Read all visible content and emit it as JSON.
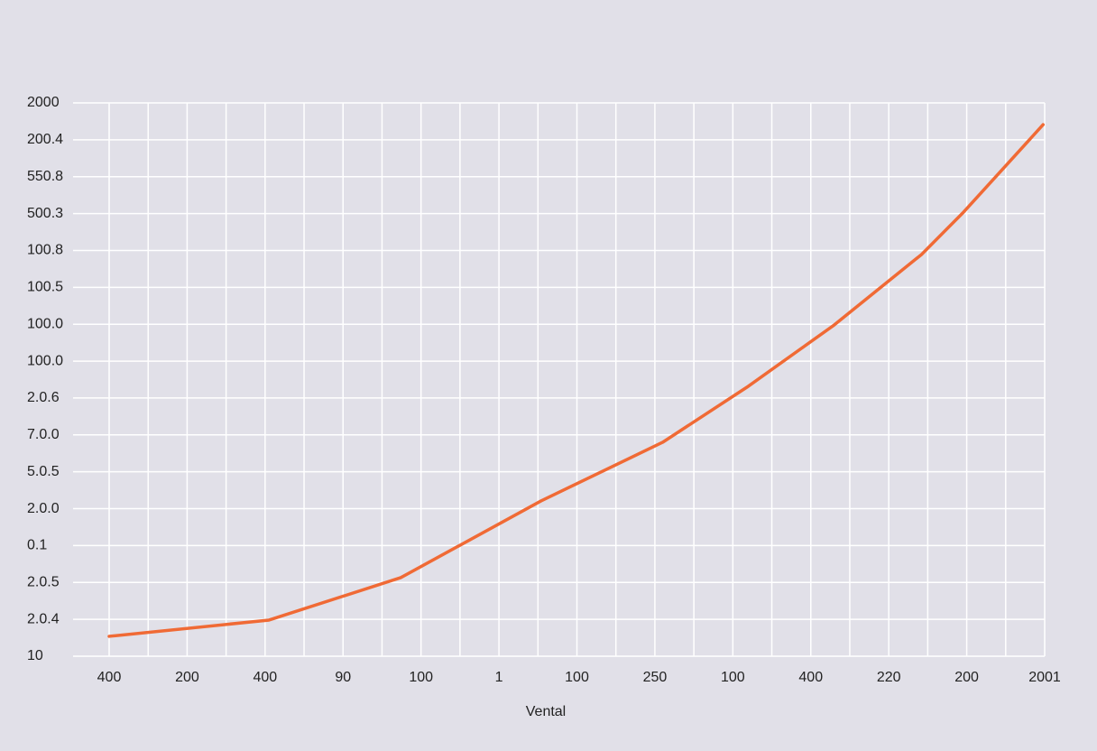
{
  "chart_data": {
    "type": "line",
    "x_label": "Vental",
    "categories": [
      "400",
      "200",
      "400",
      "90",
      "100",
      "1",
      "100",
      "250",
      "100",
      "400",
      "220",
      "200",
      "2001"
    ],
    "ycategories": [
      "10",
      "2.0.4",
      "2.0.5",
      "0.1",
      "2.0.0",
      "5.0.5",
      "7.0.0",
      "2.0.6",
      "100.0",
      "100.0",
      "100.5",
      "100.8",
      "500.3",
      "550.8",
      "200.4",
      "2000"
    ],
    "series": [
      {
        "color": "#f06a35",
        "x": [
          0,
          2.05,
          3.74,
          5.54,
          7.1,
          8.2,
          9.3,
          10.42,
          10.96,
          11.98
        ],
        "values": [
          0.54,
          0.98,
          2.13,
          4.21,
          5.8,
          7.32,
          8.98,
          10.89,
          12.04,
          14.41
        ]
      }
    ],
    "grid": true
  }
}
